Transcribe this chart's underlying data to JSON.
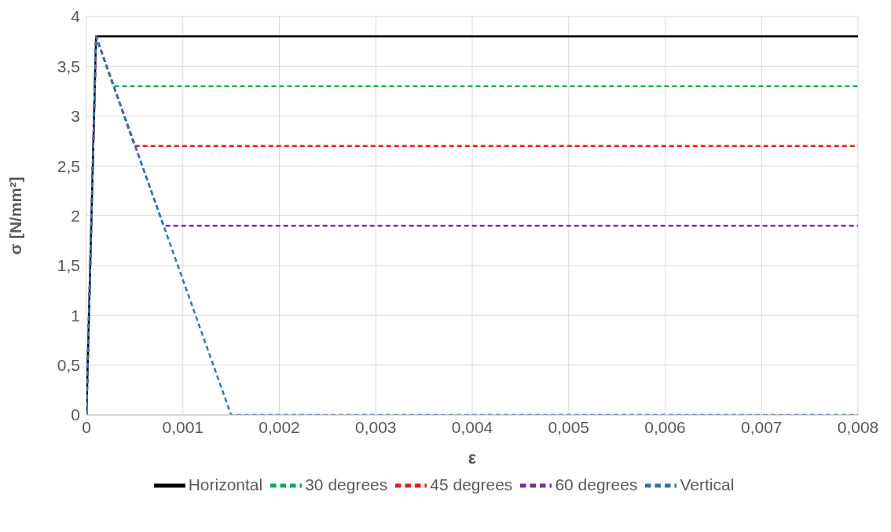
{
  "chart_data": {
    "type": "line",
    "xlabel": "ε",
    "ylabel": "σ [N/mm²]",
    "xlim": [
      0,
      0.008
    ],
    "xticks": [
      0,
      {
        "value": 0.001,
        "label": "0,001"
      },
      {
        "value": 0.002,
        "label": "0,002"
      },
      {
        "value": 0.003,
        "label": "0,003"
      },
      {
        "value": 0.004,
        "label": "0,004"
      },
      {
        "value": 0.005,
        "label": "0,005"
      },
      {
        "value": 0.006,
        "label": "0,006"
      },
      {
        "value": 0.007,
        "label": "0,007"
      },
      {
        "value": 0.008,
        "label": "0,008"
      }
    ],
    "ylim": [
      0,
      4
    ],
    "yticks": [
      0,
      {
        "value": 0.5,
        "label": "0,5"
      },
      1,
      {
        "value": 1.5,
        "label": "1,5"
      },
      2,
      {
        "value": 2.5,
        "label": "2,5"
      },
      3,
      {
        "value": 3.5,
        "label": "3,5"
      },
      4
    ],
    "grid": true,
    "legend": "bottom",
    "marker": "none",
    "series": [
      {
        "name": "Horizontal",
        "color": "#000000",
        "line_style": "solid",
        "x": [
          0,
          0.0001,
          0.008
        ],
        "values": [
          0,
          3.8,
          3.8
        ]
      },
      {
        "name": "30 degrees",
        "color": "#00b050",
        "line_style": "dashed",
        "x": [
          0,
          0.0001,
          0.00028,
          0.008
        ],
        "values": [
          0,
          3.8,
          3.3,
          3.3
        ]
      },
      {
        "name": "45 degrees",
        "color": "#e0201f",
        "line_style": "dashed",
        "x": [
          0,
          0.0001,
          0.0005,
          0.008
        ],
        "values": [
          0,
          3.8,
          2.7,
          2.7
        ]
      },
      {
        "name": "60 degrees",
        "color": "#7030a0",
        "line_style": "dashed",
        "x": [
          0,
          0.0001,
          0.0008,
          0.008
        ],
        "values": [
          0,
          3.8,
          1.9,
          1.9
        ]
      },
      {
        "name": "Vertical",
        "color": "#2e75b6",
        "line_style": "dashed",
        "x": [
          0,
          0.0001,
          0.0015,
          0.008
        ],
        "values": [
          0,
          3.8,
          0,
          0
        ]
      }
    ]
  }
}
